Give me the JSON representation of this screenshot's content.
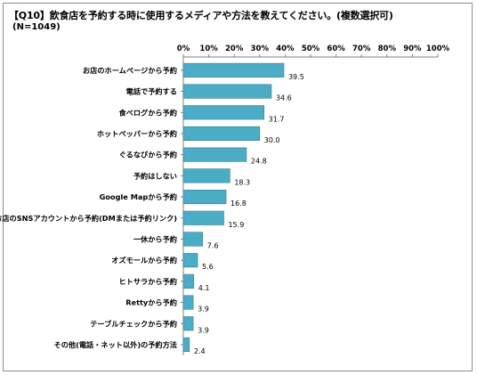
{
  "chart_data": {
    "type": "bar",
    "orientation": "horizontal",
    "title": "【Q10】飲食店を予約する時に使用するメディアや方法を教えてください。(複数選択可)",
    "subtitle": "(N=1049)",
    "categories": [
      "お店のホームページから予約",
      "電話で予約する",
      "食べログから予約",
      "ホットペッパーから予約",
      "ぐるなびから予約",
      "予約はしない",
      "Google Mapから予約",
      "お店のSNSアカウントから予約(DMまたは予約リンク)",
      "一休から予約",
      "オズモールから予約",
      "ヒトサラから予約",
      "Rettyから予約",
      "テーブルチェックから予約",
      "その他(電話・ネット以外)の予約方法"
    ],
    "values": [
      39.5,
      34.6,
      31.7,
      30.0,
      24.8,
      18.3,
      16.8,
      15.9,
      7.6,
      5.6,
      4.1,
      3.9,
      3.9,
      2.4
    ],
    "value_labels": [
      "39.5",
      "34.6",
      "31.7",
      "30.0",
      "24.8",
      "18.3",
      "16.8",
      "15.9",
      "7.6",
      "5.6",
      "4.1",
      "3.9",
      "3.9",
      "2.4"
    ],
    "xlim": [
      0,
      100
    ],
    "xticks": [
      "0%",
      "10%",
      "20%",
      "30%",
      "40%",
      "50%",
      "60%",
      "70%",
      "80%",
      "90%",
      "100%"
    ],
    "xaxis_position": "top",
    "grid": false,
    "legend": "none",
    "bar_color": "#4bacc6",
    "bar_edge_color": "#357d91"
  }
}
